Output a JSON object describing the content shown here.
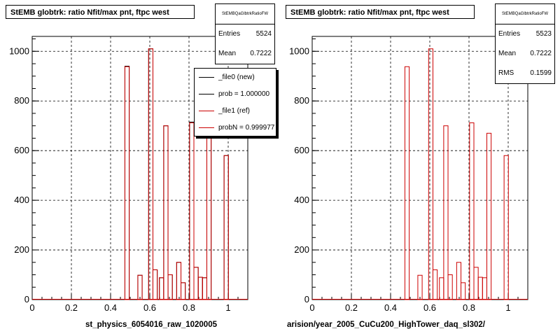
{
  "chart_data": [
    {
      "type": "bar",
      "title": "StEMB globtrk: ratio Nfit/max pnt, ftpc west",
      "xlabel": "st_physics_6054016_raw_1020005",
      "ylabel": "",
      "xlim": [
        0,
        1.1
      ],
      "ylim": [
        0,
        1060
      ],
      "grid": true,
      "xticks": [
        "0",
        "0.2",
        "0.4",
        "0.6",
        "0.8",
        "1"
      ],
      "yticks": [
        "0",
        "200",
        "400",
        "600",
        "800",
        "1000"
      ],
      "stats": {
        "name": "StEMBQaGlbtrkRatioFW",
        "rows": [
          {
            "label": "Entries",
            "value": "5524"
          },
          {
            "label": "Mean",
            "value": "0.7222"
          }
        ]
      },
      "legend": {
        "placement": "top-right",
        "entries": [
          {
            "label": "_file0 (new)",
            "color": "#000000"
          },
          {
            "label": "prob = 1.000000",
            "color": "#000000"
          },
          {
            "label": "_file1 (ref)",
            "color": "#cc0000"
          },
          {
            "label": "probN = 0.999977",
            "color": "#cc0000"
          }
        ]
      },
      "bin_width": 0.022,
      "series": [
        {
          "color": "#000000",
          "bins": [
            {
              "x": 0.484,
              "y": 940
            },
            {
              "x": 0.55,
              "y": 98
            },
            {
              "x": 0.605,
              "y": 1010
            },
            {
              "x": 0.627,
              "y": 120
            },
            {
              "x": 0.66,
              "y": 88
            },
            {
              "x": 0.682,
              "y": 700
            },
            {
              "x": 0.704,
              "y": 100
            },
            {
              "x": 0.748,
              "y": 150
            },
            {
              "x": 0.77,
              "y": 68
            },
            {
              "x": 0.814,
              "y": 715
            },
            {
              "x": 0.836,
              "y": 130
            },
            {
              "x": 0.858,
              "y": 90
            },
            {
              "x": 0.88,
              "y": 88
            },
            {
              "x": 0.902,
              "y": 670
            },
            {
              "x": 0.99,
              "y": 580
            }
          ]
        },
        {
          "color": "#cc0000",
          "bins": [
            {
              "x": 0.484,
              "y": 938
            },
            {
              "x": 0.55,
              "y": 98
            },
            {
              "x": 0.605,
              "y": 1010
            },
            {
              "x": 0.627,
              "y": 120
            },
            {
              "x": 0.66,
              "y": 88
            },
            {
              "x": 0.682,
              "y": 700
            },
            {
              "x": 0.704,
              "y": 100
            },
            {
              "x": 0.748,
              "y": 150
            },
            {
              "x": 0.77,
              "y": 68
            },
            {
              "x": 0.814,
              "y": 712
            },
            {
              "x": 0.836,
              "y": 130
            },
            {
              "x": 0.858,
              "y": 90
            },
            {
              "x": 0.88,
              "y": 88
            },
            {
              "x": 0.902,
              "y": 670
            },
            {
              "x": 0.99,
              "y": 580
            }
          ]
        }
      ]
    },
    {
      "type": "bar",
      "title": "StEMB globtrk: ratio Nfit/max pnt, ftpc west",
      "xlabel": "arision/year_2005_CuCu200_HighTower_daq_sl302/",
      "ylabel": "",
      "xlim": [
        0,
        1.1
      ],
      "ylim": [
        0,
        1060
      ],
      "grid": true,
      "xticks": [
        "0",
        "0.2",
        "0.4",
        "0.6",
        "0.8",
        "1"
      ],
      "yticks": [
        "0",
        "200",
        "400",
        "600",
        "800",
        "1000"
      ],
      "stats": {
        "name": "StEMBQaGlbtrkRatioFW",
        "rows": [
          {
            "label": "Entries",
            "value": "5523"
          },
          {
            "label": "Mean",
            "value": "0.7222"
          },
          {
            "label": "RMS",
            "value": "0.1599"
          }
        ]
      },
      "bin_width": 0.022,
      "series": [
        {
          "color": "#cc0000",
          "bins": [
            {
              "x": 0.484,
              "y": 938
            },
            {
              "x": 0.55,
              "y": 98
            },
            {
              "x": 0.605,
              "y": 1010
            },
            {
              "x": 0.627,
              "y": 120
            },
            {
              "x": 0.66,
              "y": 88
            },
            {
              "x": 0.682,
              "y": 700
            },
            {
              "x": 0.704,
              "y": 100
            },
            {
              "x": 0.748,
              "y": 150
            },
            {
              "x": 0.77,
              "y": 68
            },
            {
              "x": 0.814,
              "y": 712
            },
            {
              "x": 0.836,
              "y": 130
            },
            {
              "x": 0.858,
              "y": 90
            },
            {
              "x": 0.88,
              "y": 88
            },
            {
              "x": 0.902,
              "y": 670
            },
            {
              "x": 0.99,
              "y": 580
            }
          ]
        }
      ]
    }
  ]
}
